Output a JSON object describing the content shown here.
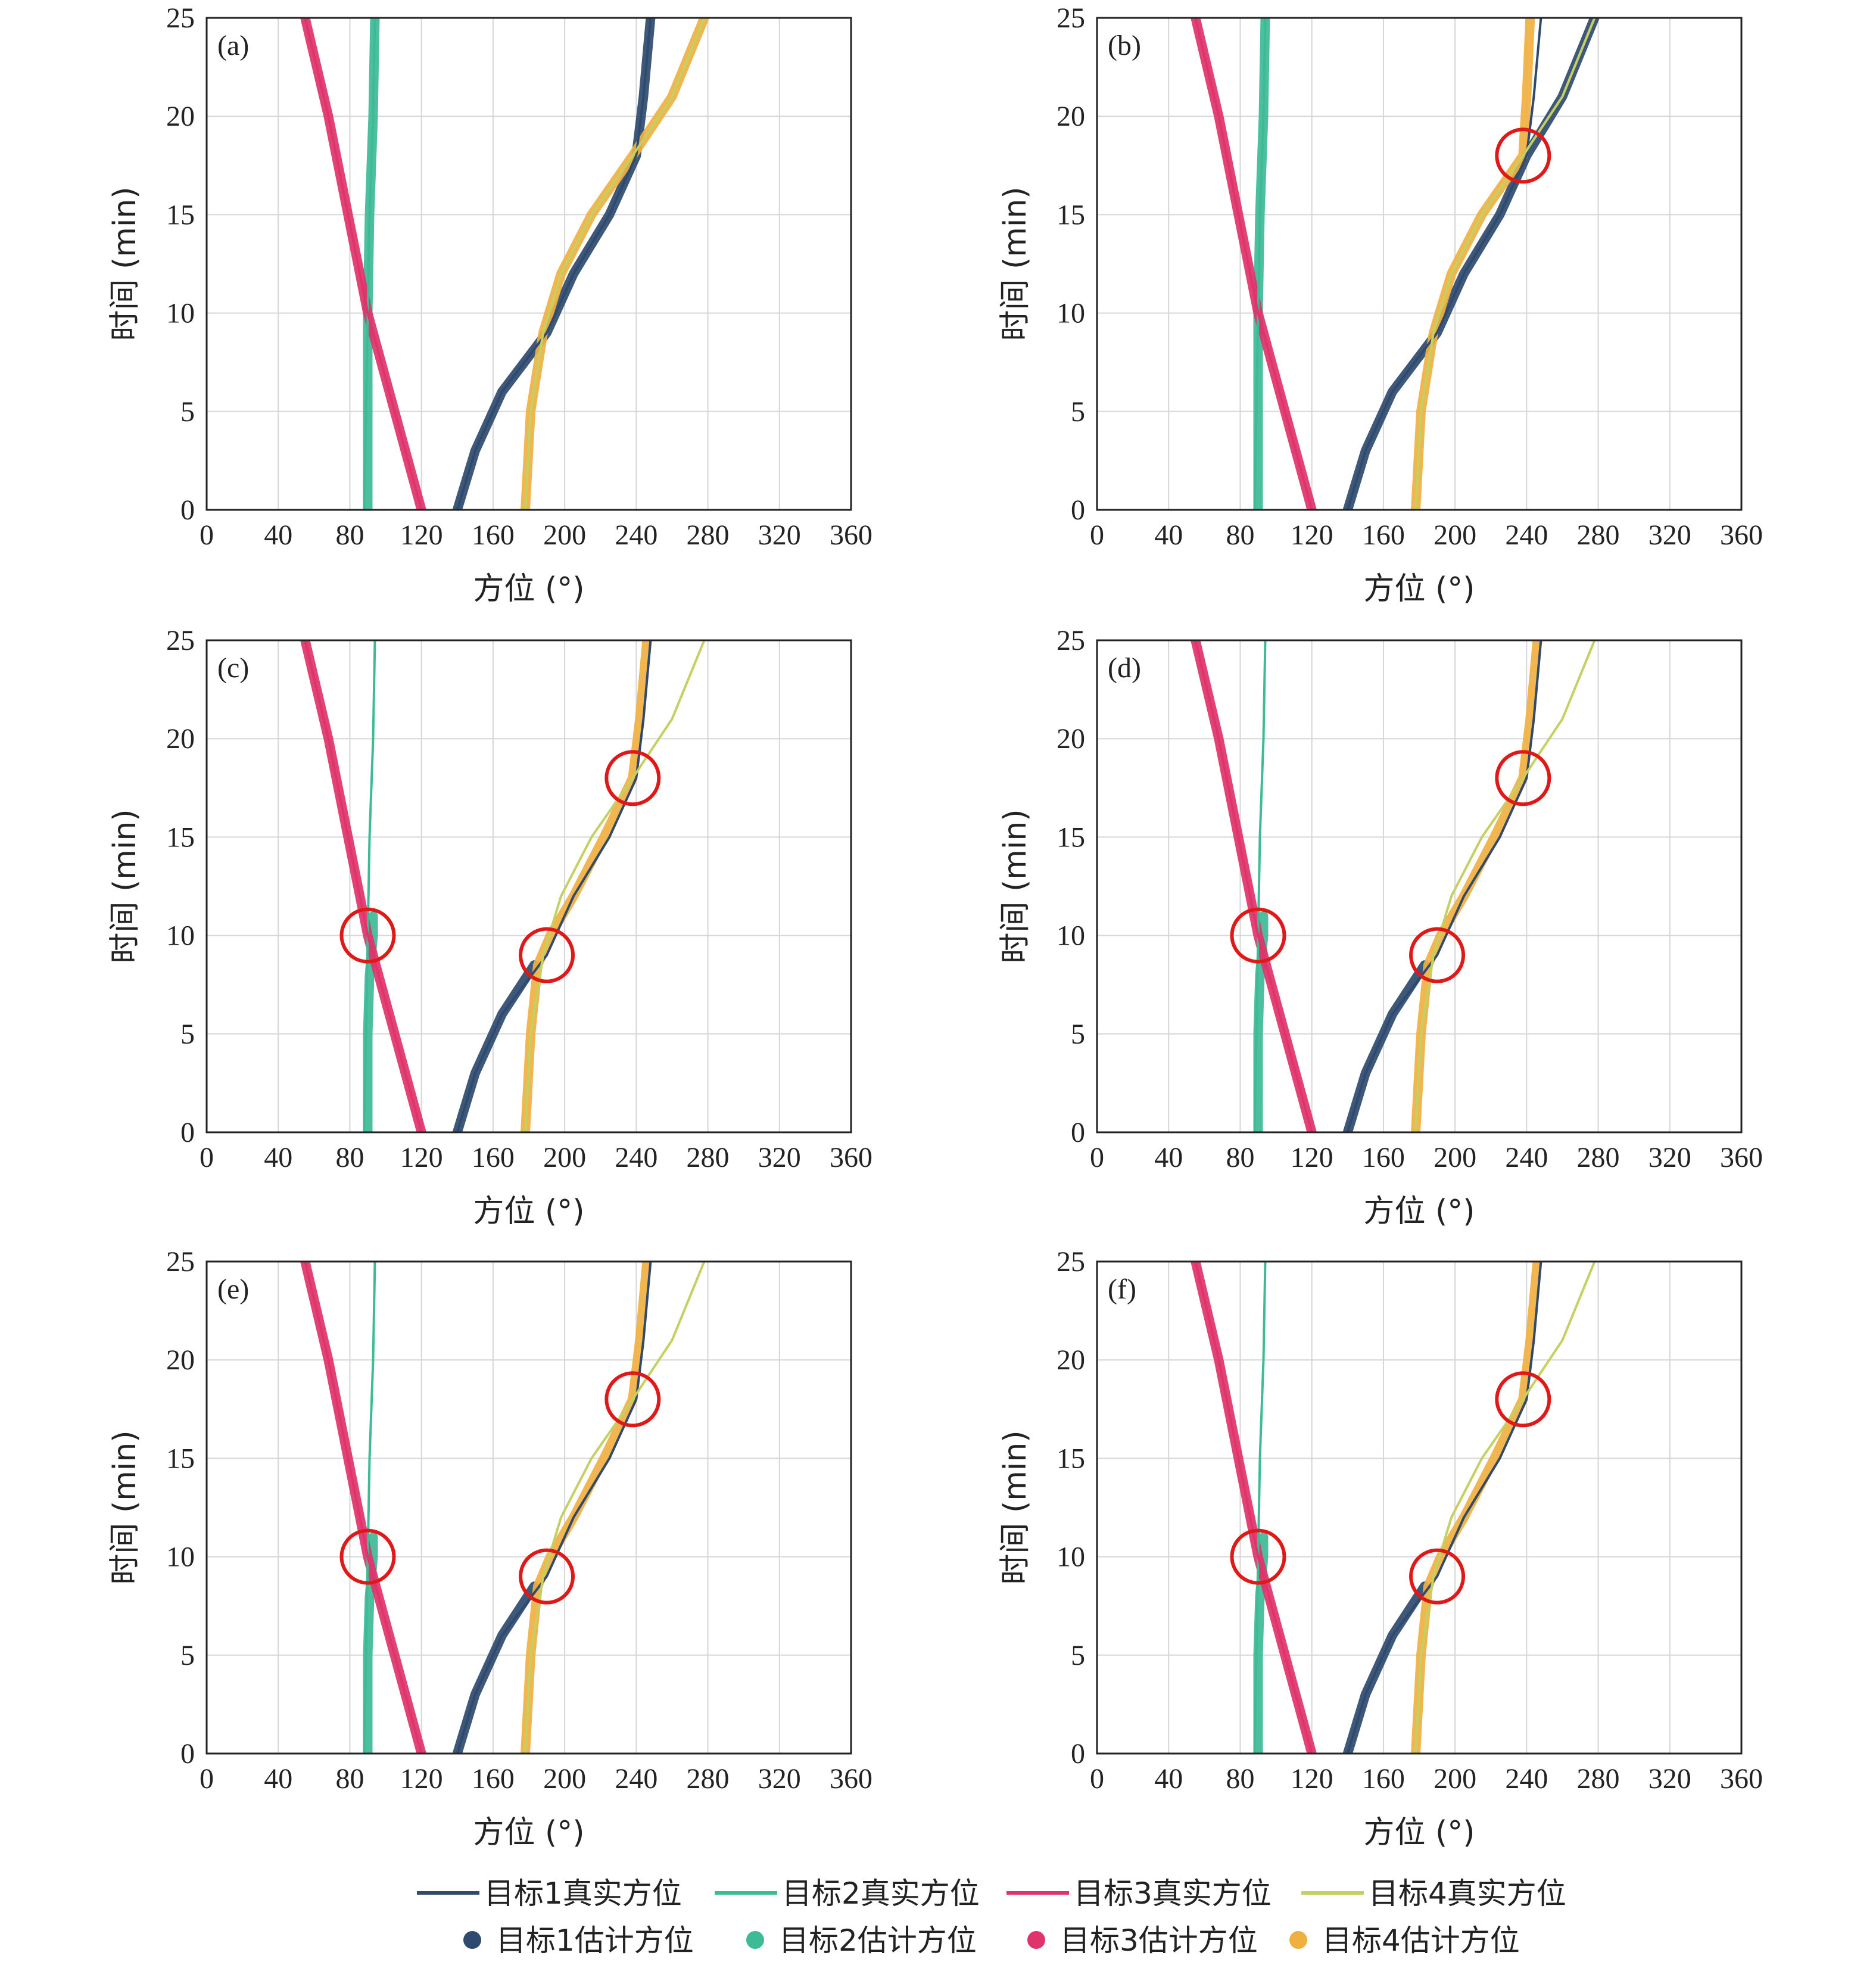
{
  "chart_data": {
    "type": "line",
    "xlabel": "方位 (°)",
    "ylabel": "时间 (min)",
    "xlim": [
      0,
      360
    ],
    "ylim": [
      0,
      25
    ],
    "x_ticks": [
      0,
      40,
      80,
      120,
      160,
      200,
      240,
      280,
      320,
      360
    ],
    "y_ticks": [
      0,
      5,
      10,
      15,
      20,
      25
    ],
    "grid": true,
    "legend_position": "bottom",
    "colors": {
      "t1": "#2e4a6e",
      "t2": "#3dba96",
      "t3": "#e0336b",
      "t4": "#f0b040",
      "t4_true": "#c4d060",
      "circle": "#e01818"
    },
    "legend": {
      "true": [
        "目标1真实方位",
        "目标2真实方位",
        "目标3真实方位",
        "目标4真实方位"
      ],
      "est": [
        "目标1估计方位",
        "目标2估计方位",
        "目标3估计方位",
        "目标4估计方位"
      ]
    },
    "true_tracks": [
      {
        "name": "目标1真实方位",
        "points": [
          [
            140,
            0
          ],
          [
            150,
            3
          ],
          [
            165,
            6
          ],
          [
            190,
            9
          ],
          [
            205,
            12
          ],
          [
            225,
            15
          ],
          [
            240,
            18
          ],
          [
            244,
            21
          ],
          [
            248,
            25
          ]
        ]
      },
      {
        "name": "目标2真实方位",
        "points": [
          [
            88,
            0
          ],
          [
            89,
            5
          ],
          [
            90,
            10
          ],
          [
            91,
            15
          ],
          [
            93,
            20
          ],
          [
            94,
            25
          ]
        ]
      },
      {
        "name": "目标3真实方位",
        "points": [
          [
            120,
            0
          ],
          [
            105,
            5
          ],
          [
            90,
            10
          ],
          [
            79,
            15
          ],
          [
            68,
            20
          ],
          [
            55,
            25
          ]
        ]
      },
      {
        "name": "目标4真实方位",
        "points": [
          [
            178,
            0
          ],
          [
            181,
            5
          ],
          [
            188,
            9
          ],
          [
            198,
            12
          ],
          [
            215,
            15
          ],
          [
            238,
            18
          ],
          [
            260,
            21
          ],
          [
            278,
            25
          ]
        ]
      }
    ],
    "panels": [
      {
        "label": "(a)",
        "series": [
          {
            "name": "目标1估计方位",
            "points": [
              [
                140,
                0
              ],
              [
                150,
                3
              ],
              [
                165,
                6
              ],
              [
                190,
                9
              ],
              [
                205,
                12
              ],
              [
                225,
                15
              ],
              [
                240,
                18
              ],
              [
                244,
                21
              ],
              [
                248,
                25
              ]
            ]
          },
          {
            "name": "目标2估计方位",
            "points": [
              [
                90,
                0
              ],
              [
                90,
                5
              ],
              [
                90,
                10
              ],
              [
                91,
                15
              ],
              [
                93,
                20
              ],
              [
                94,
                25
              ]
            ]
          },
          {
            "name": "目标3估计方位",
            "points": [
              [
                120,
                0
              ],
              [
                105,
                5
              ],
              [
                90,
                10
              ],
              [
                79,
                15
              ],
              [
                68,
                20
              ],
              [
                55,
                25
              ]
            ]
          },
          {
            "name": "目标4估计方位",
            "points": [
              [
                178,
                0
              ],
              [
                181,
                5
              ],
              [
                188,
                9
              ],
              [
                198,
                12
              ],
              [
                215,
                15
              ],
              [
                238,
                18
              ],
              [
                260,
                21
              ],
              [
                278,
                25
              ]
            ]
          }
        ],
        "circles": []
      },
      {
        "label": "(b)",
        "series": [
          {
            "name": "目标1估计方位",
            "points": [
              [
                140,
                0
              ],
              [
                150,
                3
              ],
              [
                165,
                6
              ],
              [
                190,
                9
              ],
              [
                205,
                12
              ],
              [
                225,
                15
              ],
              [
                240,
                18
              ],
              [
                260,
                21
              ],
              [
                278,
                25
              ]
            ]
          },
          {
            "name": "目标2估计方位",
            "points": [
              [
                90,
                0
              ],
              [
                90,
                5
              ],
              [
                90,
                10
              ],
              [
                91,
                15
              ],
              [
                93,
                20
              ],
              [
                94,
                25
              ]
            ]
          },
          {
            "name": "目标3估计方位",
            "points": [
              [
                120,
                0
              ],
              [
                105,
                5
              ],
              [
                90,
                10
              ],
              [
                79,
                15
              ],
              [
                68,
                20
              ],
              [
                55,
                25
              ]
            ]
          },
          {
            "name": "目标4估计方位",
            "points": [
              [
                178,
                0
              ],
              [
                181,
                5
              ],
              [
                188,
                9
              ],
              [
                198,
                12
              ],
              [
                215,
                15
              ],
              [
                238,
                18
              ],
              [
                240,
                21
              ],
              [
                242,
                25
              ]
            ]
          }
        ],
        "circles": [
          [
            238,
            18
          ]
        ]
      },
      {
        "label": "(c)",
        "series": [
          {
            "name": "目标1估计方位",
            "points": [
              [
                140,
                0
              ],
              [
                150,
                3
              ],
              [
                165,
                6
              ],
              [
                183,
                8.5
              ]
            ]
          },
          {
            "name": "目标2估计方位",
            "points": [
              [
                90,
                0
              ],
              [
                90,
                5
              ],
              [
                91,
                8
              ],
              [
                93,
                10
              ],
              [
                93,
                11
              ]
            ]
          },
          {
            "name": "目标3估计方位",
            "points": [
              [
                120,
                0
              ],
              [
                105,
                5
              ],
              [
                90,
                10
              ],
              [
                79,
                15
              ],
              [
                68,
                20
              ],
              [
                55,
                25
              ]
            ]
          },
          {
            "name": "目标4估计方位",
            "points": [
              [
                178,
                0
              ],
              [
                181,
                5
              ],
              [
                185,
                8.5
              ],
              [
                192,
                10
              ],
              [
                205,
                12
              ],
              [
                222,
                15
              ],
              [
                238,
                18
              ],
              [
                242,
                21
              ],
              [
                246,
                25
              ]
            ]
          }
        ],
        "circles": [
          [
            90,
            10
          ],
          [
            190,
            9
          ],
          [
            238,
            18
          ]
        ]
      },
      {
        "label": "(d)",
        "series": [
          {
            "name": "目标1估计方位",
            "points": [
              [
                140,
                0
              ],
              [
                150,
                3
              ],
              [
                165,
                6
              ],
              [
                183,
                8.5
              ]
            ]
          },
          {
            "name": "目标2估计方位",
            "points": [
              [
                90,
                0
              ],
              [
                90,
                5
              ],
              [
                91,
                8
              ],
              [
                93,
                10
              ],
              [
                93,
                11
              ]
            ]
          },
          {
            "name": "目标3估计方位",
            "points": [
              [
                120,
                0
              ],
              [
                105,
                5
              ],
              [
                90,
                10
              ],
              [
                79,
                15
              ],
              [
                68,
                20
              ],
              [
                55,
                25
              ]
            ]
          },
          {
            "name": "目标4估计方位",
            "points": [
              [
                178,
                0
              ],
              [
                181,
                5
              ],
              [
                185,
                8.5
              ],
              [
                192,
                10
              ],
              [
                205,
                12
              ],
              [
                222,
                15
              ],
              [
                238,
                18
              ],
              [
                242,
                21
              ],
              [
                246,
                25
              ]
            ]
          }
        ],
        "circles": [
          [
            90,
            10
          ],
          [
            190,
            9
          ],
          [
            238,
            18
          ]
        ]
      },
      {
        "label": "(e)",
        "series": [
          {
            "name": "目标1估计方位",
            "points": [
              [
                140,
                0
              ],
              [
                150,
                3
              ],
              [
                165,
                6
              ],
              [
                183,
                8.5
              ]
            ]
          },
          {
            "name": "目标2估计方位",
            "points": [
              [
                90,
                0
              ],
              [
                90,
                5
              ],
              [
                91,
                8
              ],
              [
                93,
                10
              ],
              [
                93,
                11
              ]
            ]
          },
          {
            "name": "目标3估计方位",
            "points": [
              [
                120,
                0
              ],
              [
                105,
                5
              ],
              [
                90,
                10
              ],
              [
                79,
                15
              ],
              [
                68,
                20
              ],
              [
                55,
                25
              ]
            ]
          },
          {
            "name": "目标4估计方位",
            "points": [
              [
                178,
                0
              ],
              [
                181,
                5
              ],
              [
                185,
                8.5
              ],
              [
                192,
                10
              ],
              [
                205,
                12
              ],
              [
                222,
                15
              ],
              [
                238,
                18
              ],
              [
                242,
                21
              ],
              [
                246,
                25
              ]
            ]
          }
        ],
        "circles": [
          [
            90,
            10
          ],
          [
            190,
            9
          ],
          [
            238,
            18
          ]
        ]
      },
      {
        "label": "(f)",
        "series": [
          {
            "name": "目标1估计方位",
            "points": [
              [
                140,
                0
              ],
              [
                150,
                3
              ],
              [
                165,
                6
              ],
              [
                183,
                8.5
              ]
            ]
          },
          {
            "name": "目标2估计方位",
            "points": [
              [
                90,
                0
              ],
              [
                90,
                5
              ],
              [
                91,
                8
              ],
              [
                93,
                10
              ],
              [
                93,
                11
              ]
            ]
          },
          {
            "name": "目标3估计方位",
            "points": [
              [
                120,
                0
              ],
              [
                105,
                5
              ],
              [
                90,
                10
              ],
              [
                79,
                15
              ],
              [
                68,
                20
              ],
              [
                55,
                25
              ]
            ]
          },
          {
            "name": "目标4估计方位",
            "points": [
              [
                178,
                0
              ],
              [
                181,
                5
              ],
              [
                185,
                8.5
              ],
              [
                192,
                10
              ],
              [
                205,
                12
              ],
              [
                222,
                15
              ],
              [
                238,
                18
              ],
              [
                242,
                21
              ],
              [
                246,
                25
              ]
            ]
          }
        ],
        "circles": [
          [
            90,
            10
          ],
          [
            190,
            9
          ],
          [
            238,
            18
          ]
        ]
      }
    ]
  }
}
